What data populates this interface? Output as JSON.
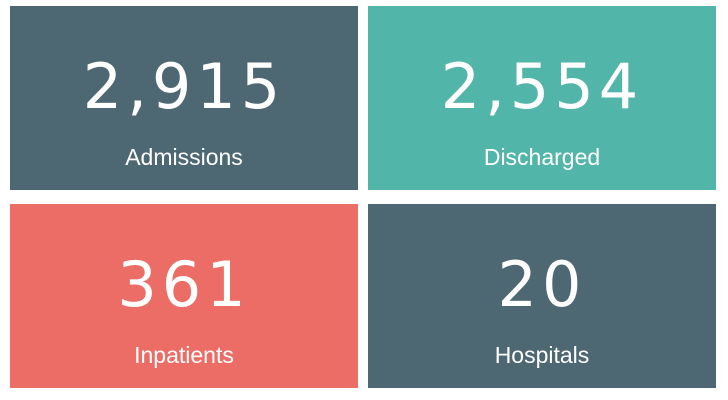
{
  "cards": [
    {
      "value": "2,915",
      "label": "Admissions",
      "color": "#4e6873"
    },
    {
      "value": "2,554",
      "label": "Discharged",
      "color": "#52b5aa"
    },
    {
      "value": "361",
      "label": "Inpatients",
      "color": "#ec6d65"
    },
    {
      "value": "20",
      "label": "Hospitals",
      "color": "#4e6873"
    }
  ]
}
